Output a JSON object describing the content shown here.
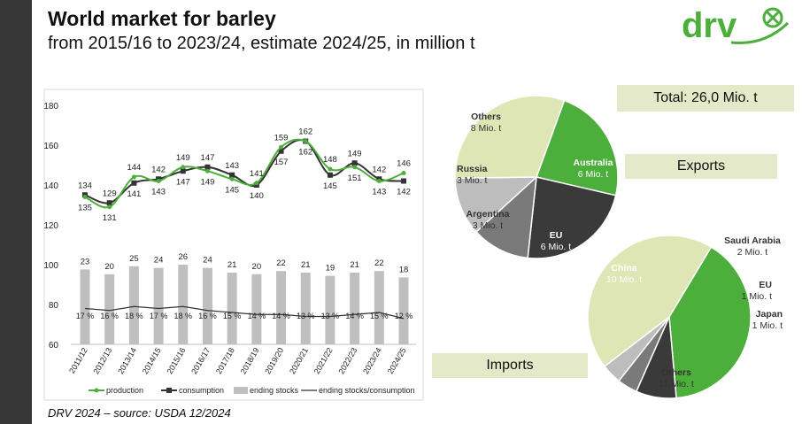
{
  "header": {
    "title": "World market for barley",
    "subtitle": "from 2015/16 to 2023/24, estimate 2024/25, in million t"
  },
  "logo": {
    "text": "drv",
    "icon": "cross-circle-logo-icon"
  },
  "footer": {
    "source": "DRV 2024 – source: USDA 12/2024"
  },
  "colors": {
    "production": "#4cae3b",
    "consumption": "#333333",
    "stocks": "#bfbfbf",
    "ratio": "#333333",
    "leftbar": "#373737",
    "label_box": "#e4e9c9"
  },
  "chart_data": [
    {
      "type": "line",
      "categories": [
        "2011/12",
        "2012/13",
        "2013/14",
        "2014/15",
        "2015/16",
        "2016/17",
        "2017/18",
        "2018/19",
        "2019/20",
        "2020/21",
        "2021/22",
        "2022/23",
        "2023/24",
        "2024/25"
      ],
      "y_ticks": [
        "180",
        "160",
        "140",
        "120",
        "100",
        "80",
        "60"
      ],
      "ylim": [
        60,
        180
      ],
      "series": [
        {
          "name": "production",
          "values": [
            134,
            129,
            144,
            142,
            149,
            147,
            143,
            141,
            159,
            162,
            148,
            149,
            142,
            146
          ]
        },
        {
          "name": "consumption",
          "values": [
            135,
            131,
            141,
            143,
            147,
            149,
            145,
            140,
            157,
            162,
            145,
            151,
            143,
            142
          ]
        },
        {
          "name": "ending stocks",
          "values": [
            23,
            20,
            25,
            24,
            26,
            24,
            21,
            20,
            22,
            21,
            19,
            21,
            22,
            18
          ]
        },
        {
          "name": "ending stocks/consumption",
          "values": [
            17,
            16,
            18,
            17,
            18,
            16,
            15,
            14,
            14,
            13,
            13,
            14,
            15,
            12
          ],
          "unit": "%"
        }
      ],
      "top_labels": [
        "134",
        "129",
        "144",
        "142",
        "149",
        "147",
        "143",
        "141",
        "159",
        "162",
        "148",
        "149",
        "142",
        "146"
      ],
      "bottom_labels": [
        "135",
        "131",
        "141",
        "143",
        "147",
        "149",
        "145",
        "140",
        "157",
        "162",
        "145",
        "151",
        "143",
        "142"
      ],
      "stock_labels": [
        "23",
        "20",
        "25",
        "24",
        "26",
        "24",
        "21",
        "20",
        "22",
        "21",
        "19",
        "21",
        "22",
        "18"
      ],
      "ratio_labels": [
        "17 %",
        "16 %",
        "18 %",
        "17 %",
        "18 %",
        "16 %",
        "15 %",
        "14 %",
        "14 %",
        "13 %",
        "13 %",
        "14 %",
        "15 %",
        "12 %"
      ],
      "legend": [
        "production",
        "consumption",
        "ending stocks",
        "ending stocks/consumption"
      ],
      "legend_position": "bottom",
      "grid": false
    },
    {
      "type": "pie",
      "title": "Exports",
      "total": "Total: 26,0 Mio. t",
      "slices": [
        {
          "name": "Australia",
          "value": 6,
          "label": "6 Mio. t",
          "color": "#4cae3b"
        },
        {
          "name": "EU",
          "value": 6,
          "label": "6 Mio. t",
          "color": "#3a3a3a"
        },
        {
          "name": "Argentina",
          "value": 3,
          "label": "3 Mio. t",
          "color": "#7a7a7a"
        },
        {
          "name": "Russia",
          "value": 3,
          "label": "3 Mio. t",
          "color": "#bdbdbd"
        },
        {
          "name": "Others",
          "value": 8,
          "label": "8 Mio. t",
          "color": "#dfe6b5"
        }
      ]
    },
    {
      "type": "pie",
      "title": "Imports",
      "slices": [
        {
          "name": "China",
          "value": 10,
          "label": "10 Mio. t",
          "color": "#4cae3b"
        },
        {
          "name": "Saudi Arabia",
          "value": 2,
          "label": "2 Mio. t",
          "color": "#3a3a3a"
        },
        {
          "name": "EU",
          "value": 1,
          "label": "1 Mio. t",
          "color": "#7a7a7a"
        },
        {
          "name": "Japan",
          "value": 1,
          "label": "1 Mio. t",
          "color": "#bdbdbd"
        },
        {
          "name": "Others",
          "value": 11,
          "label": "11 Mio. t",
          "color": "#dfe6b5"
        }
      ]
    }
  ]
}
